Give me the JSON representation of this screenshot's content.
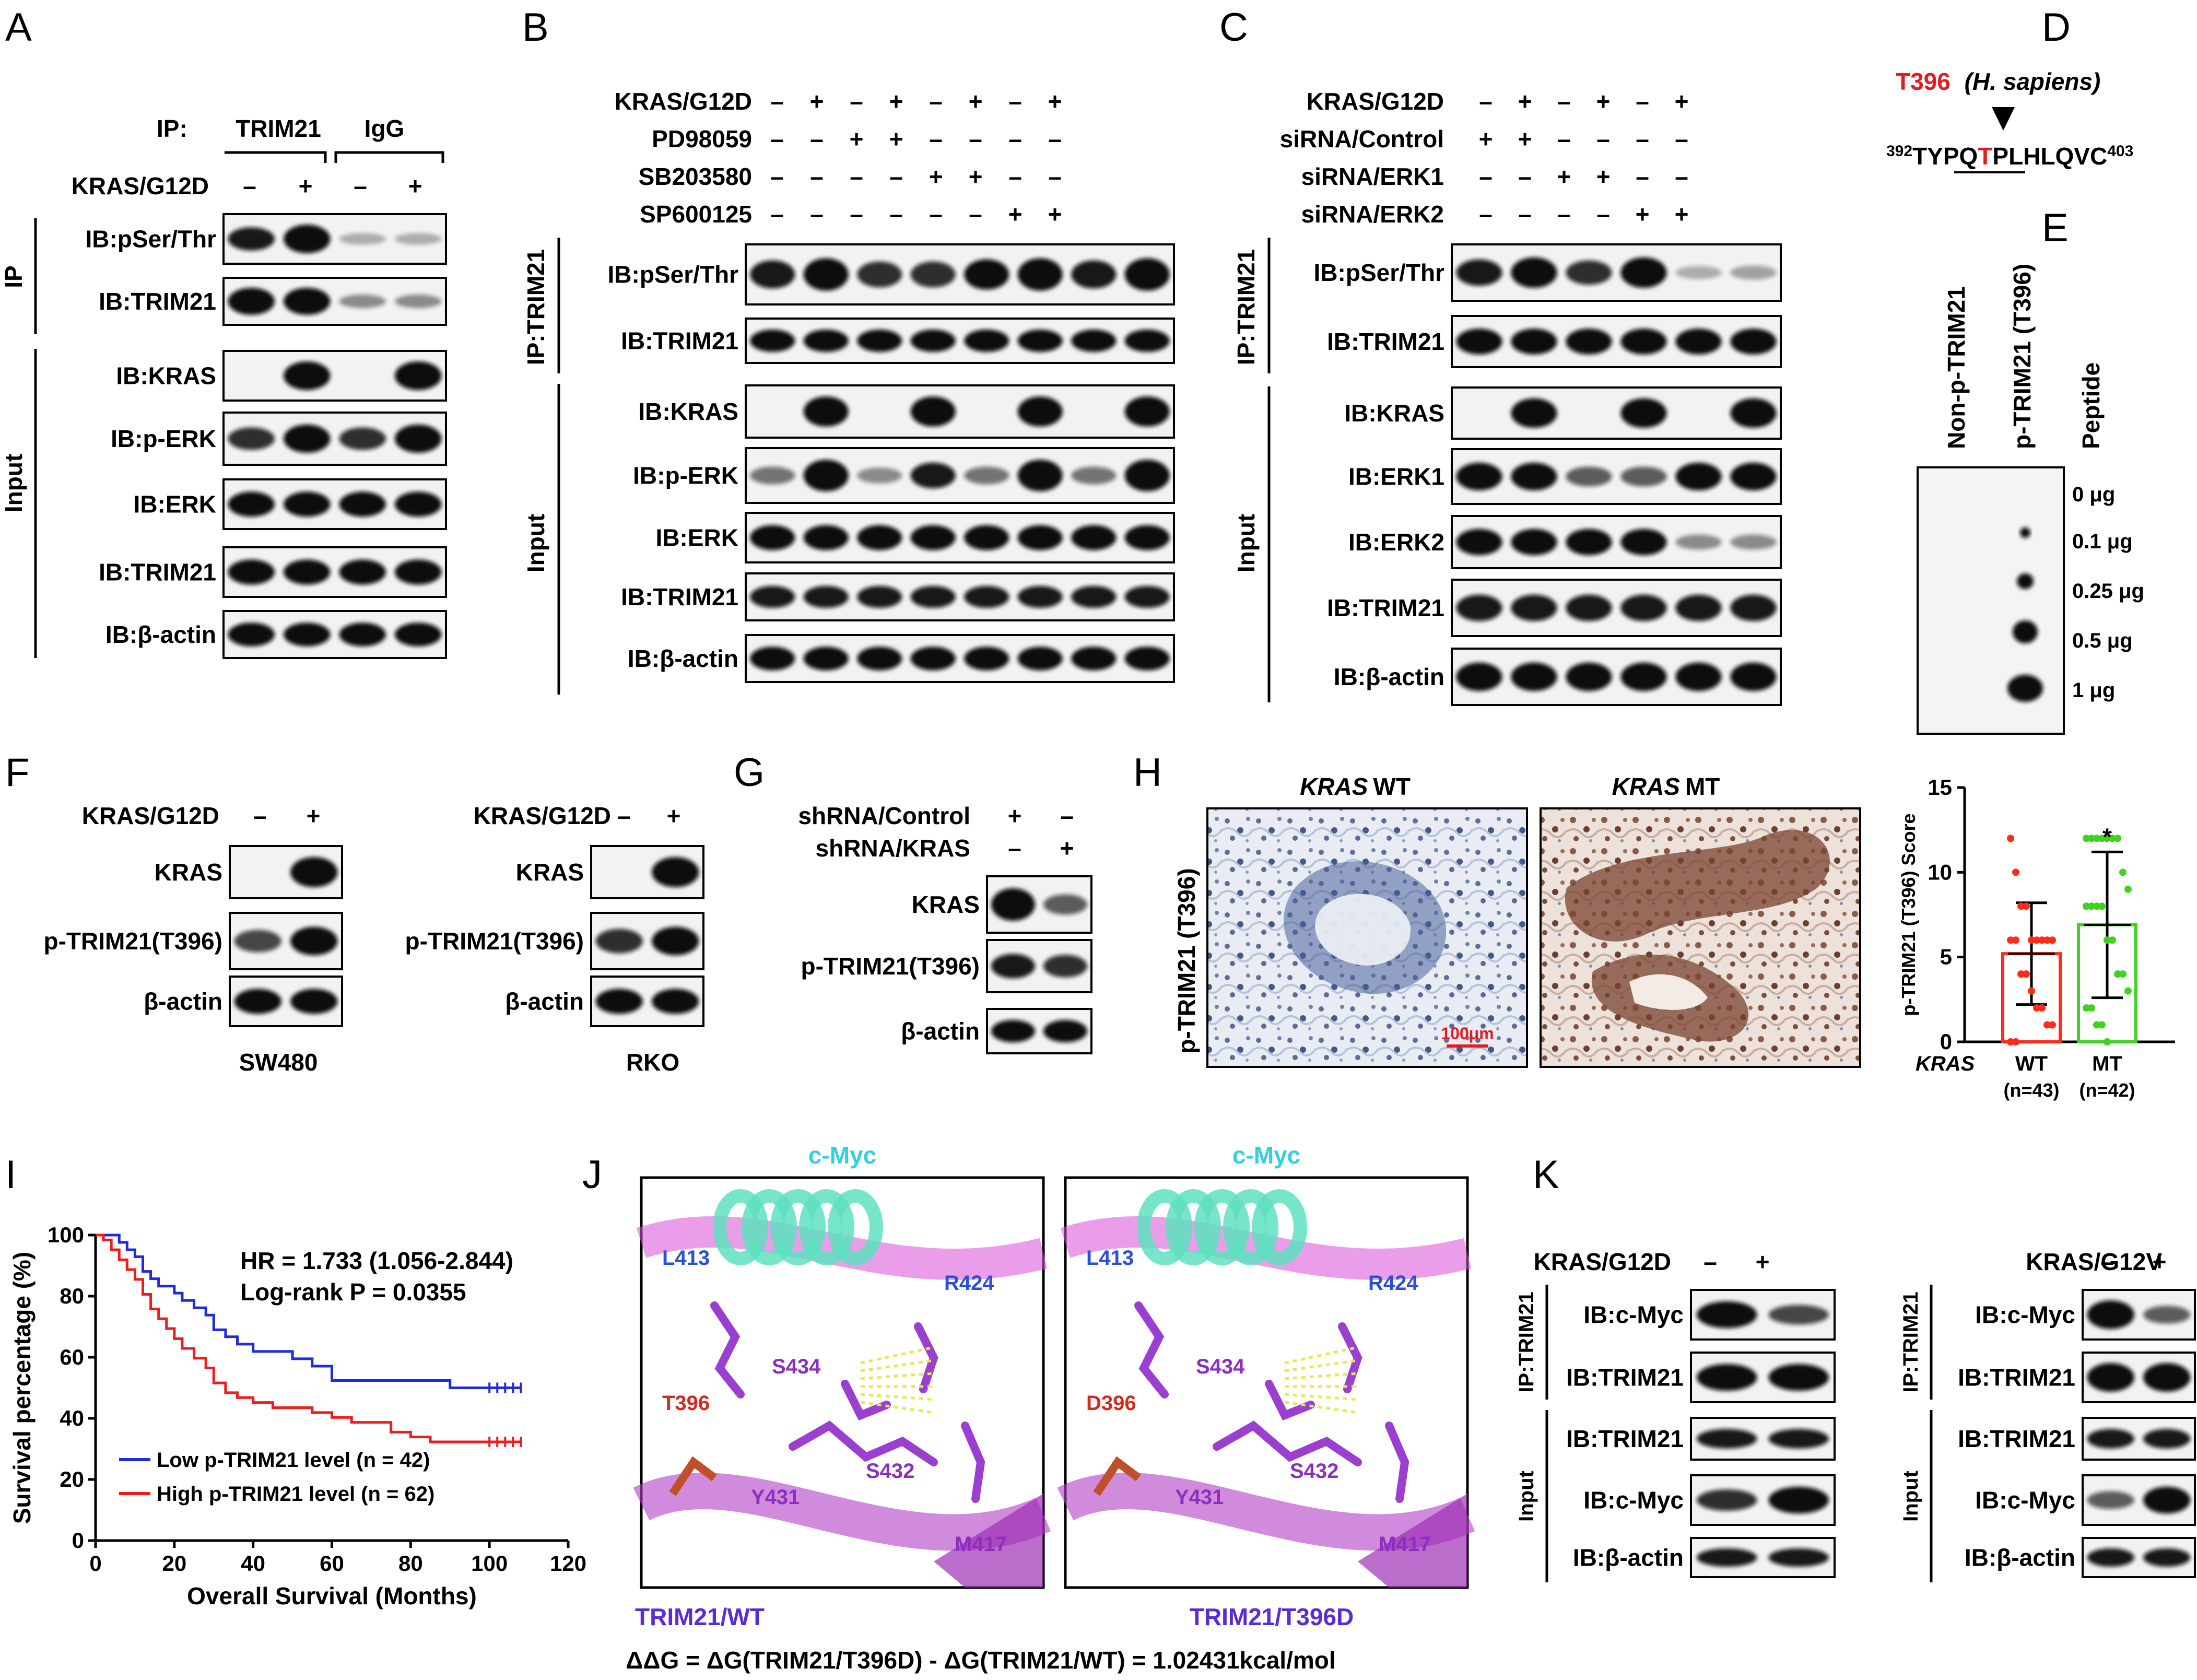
{
  "panels": {
    "A": {
      "letter": "A",
      "ip_label": "IP:",
      "ip_groups": [
        "TRIM21",
        "IgG"
      ],
      "condition": "KRAS/G12D",
      "signs": [
        "–",
        "+",
        "–",
        "+"
      ],
      "section_ip": "IP",
      "section_input": "Input",
      "rows": [
        "IB:pSer/Thr",
        "IB:TRIM21",
        "IB:KRAS",
        "IB:p-ERK",
        "IB:ERK",
        "IB:TRIM21",
        "IB:β-actin"
      ]
    },
    "B": {
      "letter": "B",
      "conditions": [
        {
          "label": "KRAS/G12D",
          "signs": [
            "–",
            "+",
            "–",
            "+",
            "–",
            "+",
            "–",
            "+"
          ]
        },
        {
          "label": "PD98059",
          "signs": [
            "–",
            "–",
            "+",
            "+",
            "–",
            "–",
            "–",
            "–"
          ]
        },
        {
          "label": "SB203580",
          "signs": [
            "–",
            "–",
            "–",
            "–",
            "+",
            "+",
            "–",
            "–"
          ]
        },
        {
          "label": "SP600125",
          "signs": [
            "–",
            "–",
            "–",
            "–",
            "–",
            "–",
            "+",
            "+"
          ]
        }
      ],
      "section_ip": "IP:TRIM21",
      "section_input": "Input",
      "rows": [
        "IB:pSer/Thr",
        "IB:TRIM21",
        "IB:KRAS",
        "IB:p-ERK",
        "IB:ERK",
        "IB:TRIM21",
        "IB:β-actin"
      ]
    },
    "C": {
      "letter": "C",
      "conditions": [
        {
          "label": "KRAS/G12D",
          "signs": [
            "–",
            "+",
            "–",
            "+",
            "–",
            "+"
          ]
        },
        {
          "label": "siRNA/Control",
          "signs": [
            "+",
            "+",
            "–",
            "–",
            "–",
            "–"
          ]
        },
        {
          "label": "siRNA/ERK1",
          "signs": [
            "–",
            "–",
            "+",
            "+",
            "–",
            "–"
          ]
        },
        {
          "label": "siRNA/ERK2",
          "signs": [
            "–",
            "–",
            "–",
            "–",
            "+",
            "+"
          ]
        }
      ],
      "section_ip": "IP:TRIM21",
      "section_input": "Input",
      "rows": [
        "IB:pSer/Thr",
        "IB:TRIM21",
        "IB:KRAS",
        "IB:ERK1",
        "IB:ERK2",
        "IB:TRIM21",
        "IB:β-actin"
      ]
    },
    "D": {
      "letter": "D",
      "site": "T396",
      "species": "(H. sapiens)",
      "seq_start": "392",
      "seq_pre": "TYPQ",
      "seq_site": "T",
      "seq_post": "PLHLQVC",
      "seq_end": "403"
    },
    "E": {
      "letter": "E",
      "columns": [
        "Non-p-TRIM21",
        "p-TRIM21 (T396)",
        "Peptide"
      ],
      "amounts": [
        "0 μg",
        "0.1 μg",
        "0.25 μg",
        "0.5 μg",
        "1 μg"
      ]
    },
    "F": {
      "letter": "F",
      "condition": "KRAS/G12D",
      "signs": [
        "–",
        "+"
      ],
      "rows": [
        "KRAS",
        "p-TRIM21(T396)",
        "β-actin"
      ],
      "cell_lines": [
        "SW480",
        "RKO"
      ]
    },
    "G": {
      "letter": "G",
      "conditions": [
        {
          "label": "shRNA/Control",
          "signs": [
            "+",
            "–"
          ]
        },
        {
          "label": "shRNA/KRAS",
          "signs": [
            "–",
            "+"
          ]
        }
      ],
      "rows": [
        "KRAS",
        "p-TRIM21(T396)",
        "β-actin"
      ]
    },
    "H": {
      "letter": "H",
      "images": [
        {
          "gene": "KRAS",
          "status": "WT"
        },
        {
          "gene": "KRAS",
          "status": "MT"
        }
      ],
      "side_label": "p-TRIM21 (T396)",
      "scale_bar": "100μm",
      "significance": "*",
      "row_label": "KRAS",
      "groups": [
        "WT",
        "MT"
      ],
      "ns": [
        "(n=43)",
        "(n=42)"
      ]
    },
    "I": {
      "letter": "I"
    },
    "J": {
      "letter": "J",
      "partner": "c-Myc",
      "residues": [
        "L413",
        "R424",
        "S434",
        "S432",
        "Y431",
        "M417"
      ],
      "site_wt": "T396",
      "site_mut": "D396",
      "captions": [
        "TRIM21/WT",
        "TRIM21/T396D"
      ],
      "equation": "ΔΔG = ΔG(TRIM21/T396D) - ΔG(TRIM21/WT) = 1.02431kcal/mol"
    },
    "K": {
      "letter": "K",
      "left": {
        "condition": "KRAS/G12D",
        "signs": [
          "–",
          "+"
        ]
      },
      "right": {
        "condition": "KRAS/G12V",
        "signs": [
          "–",
          "+"
        ]
      },
      "section_ip": "IP:TRIM21",
      "section_input": "Input",
      "rows": [
        "IB:c-Myc",
        "IB:TRIM21",
        "IB:TRIM21",
        "IB:c-Myc",
        "IB:β-actin"
      ]
    }
  },
  "chart_data": [
    {
      "type": "bar",
      "categories": [
        "WT",
        "MT"
      ],
      "values": [
        5.2,
        6.9
      ],
      "error": [
        3.0,
        4.3
      ],
      "ylabel": "p-TRIM21 (T396) Score",
      "ylim": [
        0,
        15
      ],
      "yticks": [
        "0",
        "5",
        "10",
        "15"
      ],
      "colors": [
        "#ff2a1a",
        "#3fd21e"
      ]
    },
    {
      "type": "line",
      "xlabel": "Overall Survival (Months)",
      "ylabel": "Survival percentage (%)",
      "xlim": [
        0,
        120
      ],
      "ylim": [
        0,
        100
      ],
      "xticks": [
        "0",
        "20",
        "40",
        "60",
        "80",
        "100",
        "120"
      ],
      "yticks": [
        "0",
        "20",
        "40",
        "60",
        "80",
        "100"
      ],
      "annotations": [
        "HR = 1.733 (1.056-2.844)",
        "Log-rank P = 0.0355"
      ],
      "series": [
        {
          "name": "Low p-TRIM21 level (n = 42)",
          "color": "#1f2be0",
          "x": [
            0,
            3,
            6,
            8,
            10,
            12,
            14,
            16,
            18,
            20,
            22,
            25,
            28,
            30,
            33,
            36,
            40,
            45,
            50,
            55,
            60,
            65,
            70,
            75,
            80,
            90,
            100,
            108
          ],
          "y": [
            100,
            100,
            97.6,
            95.2,
            92.9,
            88.1,
            85.7,
            83.3,
            83.3,
            81.0,
            78.6,
            76.2,
            73.8,
            69.0,
            66.7,
            64.3,
            61.9,
            61.9,
            59.5,
            57.1,
            52.4,
            52.4,
            52.4,
            52.4,
            52.4,
            50.0,
            50.0,
            50.0
          ]
        },
        {
          "name": "High p-TRIM21 level (n = 62)",
          "color": "#ee1c1c",
          "x": [
            0,
            2,
            4,
            6,
            8,
            10,
            12,
            14,
            16,
            18,
            20,
            22,
            25,
            28,
            30,
            33,
            36,
            40,
            45,
            50,
            55,
            60,
            65,
            70,
            75,
            80,
            85,
            100,
            108
          ],
          "y": [
            100,
            98.4,
            95.2,
            91.9,
            88.7,
            85.5,
            80.6,
            75.8,
            72.6,
            69.4,
            66.1,
            62.9,
            59.7,
            56.5,
            51.6,
            48.4,
            46.8,
            45.2,
            43.5,
            43.5,
            41.9,
            40.3,
            38.7,
            38.7,
            35.5,
            33.9,
            32.3,
            32.3,
            32.3
          ]
        }
      ]
    }
  ]
}
